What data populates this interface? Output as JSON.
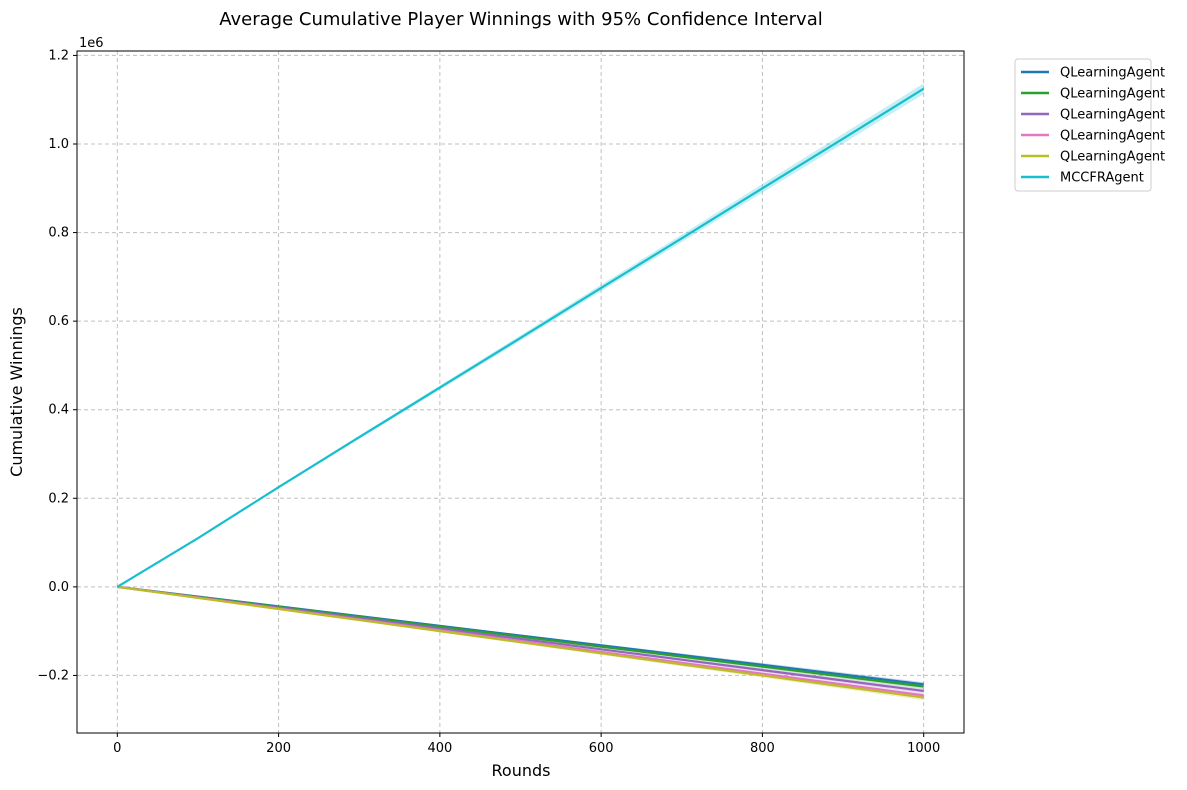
{
  "chart_data": {
    "type": "line",
    "title": "Average Cumulative Player Winnings with 95% Confidence Interval",
    "xlabel": "Rounds",
    "ylabel": "Cumulative Winnings",
    "y_scale_note": "1e6",
    "xlim": [
      -50,
      1050
    ],
    "ylim": [
      -0.33,
      1.21
    ],
    "xticks": [
      0,
      200,
      400,
      600,
      800,
      1000
    ],
    "xtick_labels": [
      "0",
      "200",
      "400",
      "600",
      "800",
      "1000"
    ],
    "yticks": [
      -0.2,
      0.0,
      0.2,
      0.4,
      0.6,
      0.8,
      1.0,
      1.2
    ],
    "ytick_labels": [
      "−0.2",
      "0.0",
      "0.2",
      "0.4",
      "0.6",
      "0.8",
      "1.0",
      "1.2"
    ],
    "grid": true,
    "grid_style": "dashed",
    "legend_position": "outside-top-right",
    "x": [
      0,
      100,
      200,
      300,
      400,
      500,
      600,
      700,
      800,
      900,
      1000
    ],
    "series": [
      {
        "name": "QLearningAgent",
        "color": "#1f77b4",
        "values": [
          0,
          -0.022,
          -0.044,
          -0.066,
          -0.088,
          -0.11,
          -0.132,
          -0.154,
          -0.176,
          -0.198,
          -0.22
        ],
        "ci": 0.005
      },
      {
        "name": "QLearningAgent",
        "color": "#2ca02c",
        "values": [
          0,
          -0.0225,
          -0.045,
          -0.0675,
          -0.09,
          -0.1125,
          -0.135,
          -0.1575,
          -0.18,
          -0.2025,
          -0.225
        ],
        "ci": 0.005
      },
      {
        "name": "QLearningAgent",
        "color": "#9467bd",
        "values": [
          0,
          -0.0235,
          -0.047,
          -0.0705,
          -0.094,
          -0.1175,
          -0.141,
          -0.1645,
          -0.188,
          -0.2115,
          -0.235
        ],
        "ci": 0.005
      },
      {
        "name": "QLearningAgent",
        "color": "#e377c2",
        "values": [
          0,
          -0.0245,
          -0.049,
          -0.0735,
          -0.098,
          -0.1225,
          -0.147,
          -0.1715,
          -0.196,
          -0.2205,
          -0.245
        ],
        "ci": 0.005
      },
      {
        "name": "QLearningAgent",
        "color": "#bcbd22",
        "values": [
          0,
          -0.025,
          -0.05,
          -0.075,
          -0.1,
          -0.125,
          -0.15,
          -0.175,
          -0.2,
          -0.225,
          -0.25
        ],
        "ci": 0.006
      },
      {
        "name": "MCCFRAgent",
        "color": "#17becf",
        "values": [
          0,
          0.11,
          0.225,
          0.338,
          0.45,
          0.562,
          0.675,
          0.787,
          0.9,
          1.012,
          1.125
        ],
        "ci": 0.012
      }
    ]
  }
}
